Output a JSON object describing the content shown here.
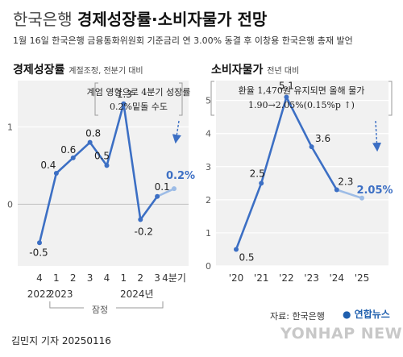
{
  "header": {
    "prefix": "한국은행",
    "title": "경제성장률·소비자물가 전망",
    "subtitle": "1월 16일 한국은행 금융통화위원회 기준금리 연 3.00% 동결 후 이창용 한국은행 총재 발언"
  },
  "colors": {
    "line": "#3c6fc4",
    "projection": "#9dbce6",
    "panel_bg": "#f1f1f1",
    "grid": "#ffffff"
  },
  "chart_data": [
    {
      "type": "line",
      "title": "경제성장률",
      "note": "계절조정, 전분기 대비",
      "x_labels": [
        "4",
        "1",
        "2",
        "3",
        "4",
        "1",
        "2",
        "3",
        "4분기"
      ],
      "year_labels": [
        "2022",
        "2023",
        "2024년"
      ],
      "values": [
        -0.5,
        0.4,
        0.6,
        0.8,
        0.5,
        1.3,
        -0.2,
        0.1,
        0.2
      ],
      "value_labels": [
        "-0.5",
        "0.4",
        "0.6",
        "0.8",
        "0.5",
        "1.3",
        "-0.2",
        "0.1",
        "0.2%"
      ],
      "projection_from_index": 7,
      "callout": [
        "계엄 영향으로 4분기 성장률",
        "0.2%밑돌 수도"
      ],
      "bracket_label": "잠정",
      "y_ticks": [
        0,
        1
      ],
      "ylim": [
        -0.8,
        1.6
      ]
    },
    {
      "type": "line",
      "title": "소비자물가",
      "note": "전년 대비",
      "x_labels": [
        "'20",
        "'21",
        "'22",
        "'23",
        "'24",
        "'25"
      ],
      "values": [
        0.5,
        2.5,
        5.1,
        3.6,
        2.3,
        2.05
      ],
      "value_labels": [
        "0.5",
        "2.5",
        "5.1",
        "3.6",
        "2.3",
        "2.05%"
      ],
      "projection_from_index": 4,
      "callout": [
        "환율 1,470원 유지되면 올해 물가",
        "1.90→2.05%(0.15%p ↑)"
      ],
      "y_ticks": [
        0,
        1,
        2,
        3,
        4,
        5
      ],
      "ylim": [
        0,
        5.6
      ]
    }
  ],
  "footer": {
    "source": "자료: 한국은행",
    "brand": "연합뉴스",
    "watermark": "YONHAP NEWS",
    "credit": "김민지 기자  20250116"
  }
}
